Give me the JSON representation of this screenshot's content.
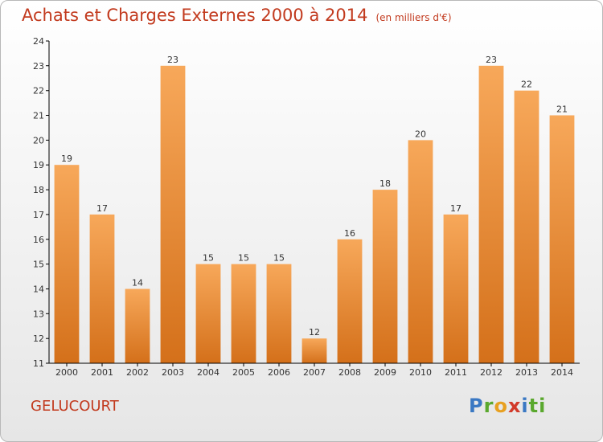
{
  "title": "Achats et Charges Externes 2000 à 2014",
  "unit": "(en milliers d'€)",
  "commune": "GELUCOURT",
  "logo": [
    "P",
    "r",
    "o",
    "x",
    "i",
    "ti"
  ],
  "colors": {
    "bar_top": "#f7a85a",
    "bar_bottom": "#d4701a",
    "title": "#c23a1e",
    "axis": "#000000"
  },
  "chart_data": {
    "type": "bar",
    "categories": [
      "2000",
      "2001",
      "2002",
      "2003",
      "2004",
      "2005",
      "2006",
      "2007",
      "2008",
      "2009",
      "2010",
      "2011",
      "2012",
      "2013",
      "2014"
    ],
    "values": [
      19,
      17,
      14,
      23,
      15,
      15,
      15,
      12,
      16,
      18,
      20,
      17,
      23,
      22,
      21
    ],
    "ylim": [
      11,
      24
    ],
    "yticks": [
      11,
      12,
      13,
      14,
      15,
      16,
      17,
      18,
      19,
      20,
      21,
      22,
      23,
      24
    ],
    "grid": false
  }
}
